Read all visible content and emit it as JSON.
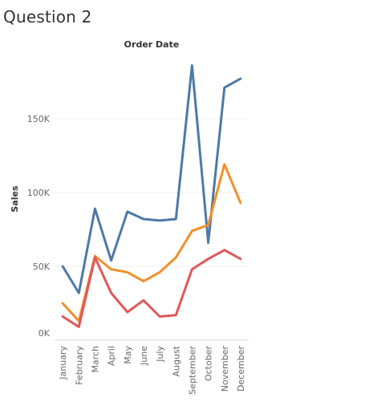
{
  "page": {
    "title": "Question 2"
  },
  "chart_data": {
    "type": "line",
    "title": "Order Date",
    "xlabel": "",
    "ylabel": "Sales",
    "categories": [
      "January",
      "February",
      "March",
      "April",
      "May",
      "June",
      "July",
      "August",
      "September",
      "October",
      "November",
      "December"
    ],
    "y_ticks": [
      {
        "value": 0,
        "label": "0K"
      },
      {
        "value": 50000,
        "label": "50K"
      },
      {
        "value": 100000,
        "label": "100K"
      },
      {
        "value": 150000,
        "label": "150K"
      }
    ],
    "ylim": [
      0,
      195000
    ],
    "grid": true,
    "legend": "none",
    "series": [
      {
        "color": "#4e79a7",
        "values": [
          50000,
          32000,
          89000,
          54000,
          87000,
          82000,
          81000,
          82000,
          186000,
          66000,
          171000,
          177000
        ]
      },
      {
        "color": "#f28e2b",
        "values": [
          25000,
          13000,
          57000,
          48000,
          46000,
          40000,
          46000,
          56000,
          74000,
          78000,
          119000,
          93000
        ]
      },
      {
        "color": "#e15759",
        "values": [
          16000,
          9000,
          56000,
          32000,
          19000,
          27000,
          16000,
          17000,
          48000,
          55000,
          61000,
          55000
        ]
      }
    ]
  }
}
